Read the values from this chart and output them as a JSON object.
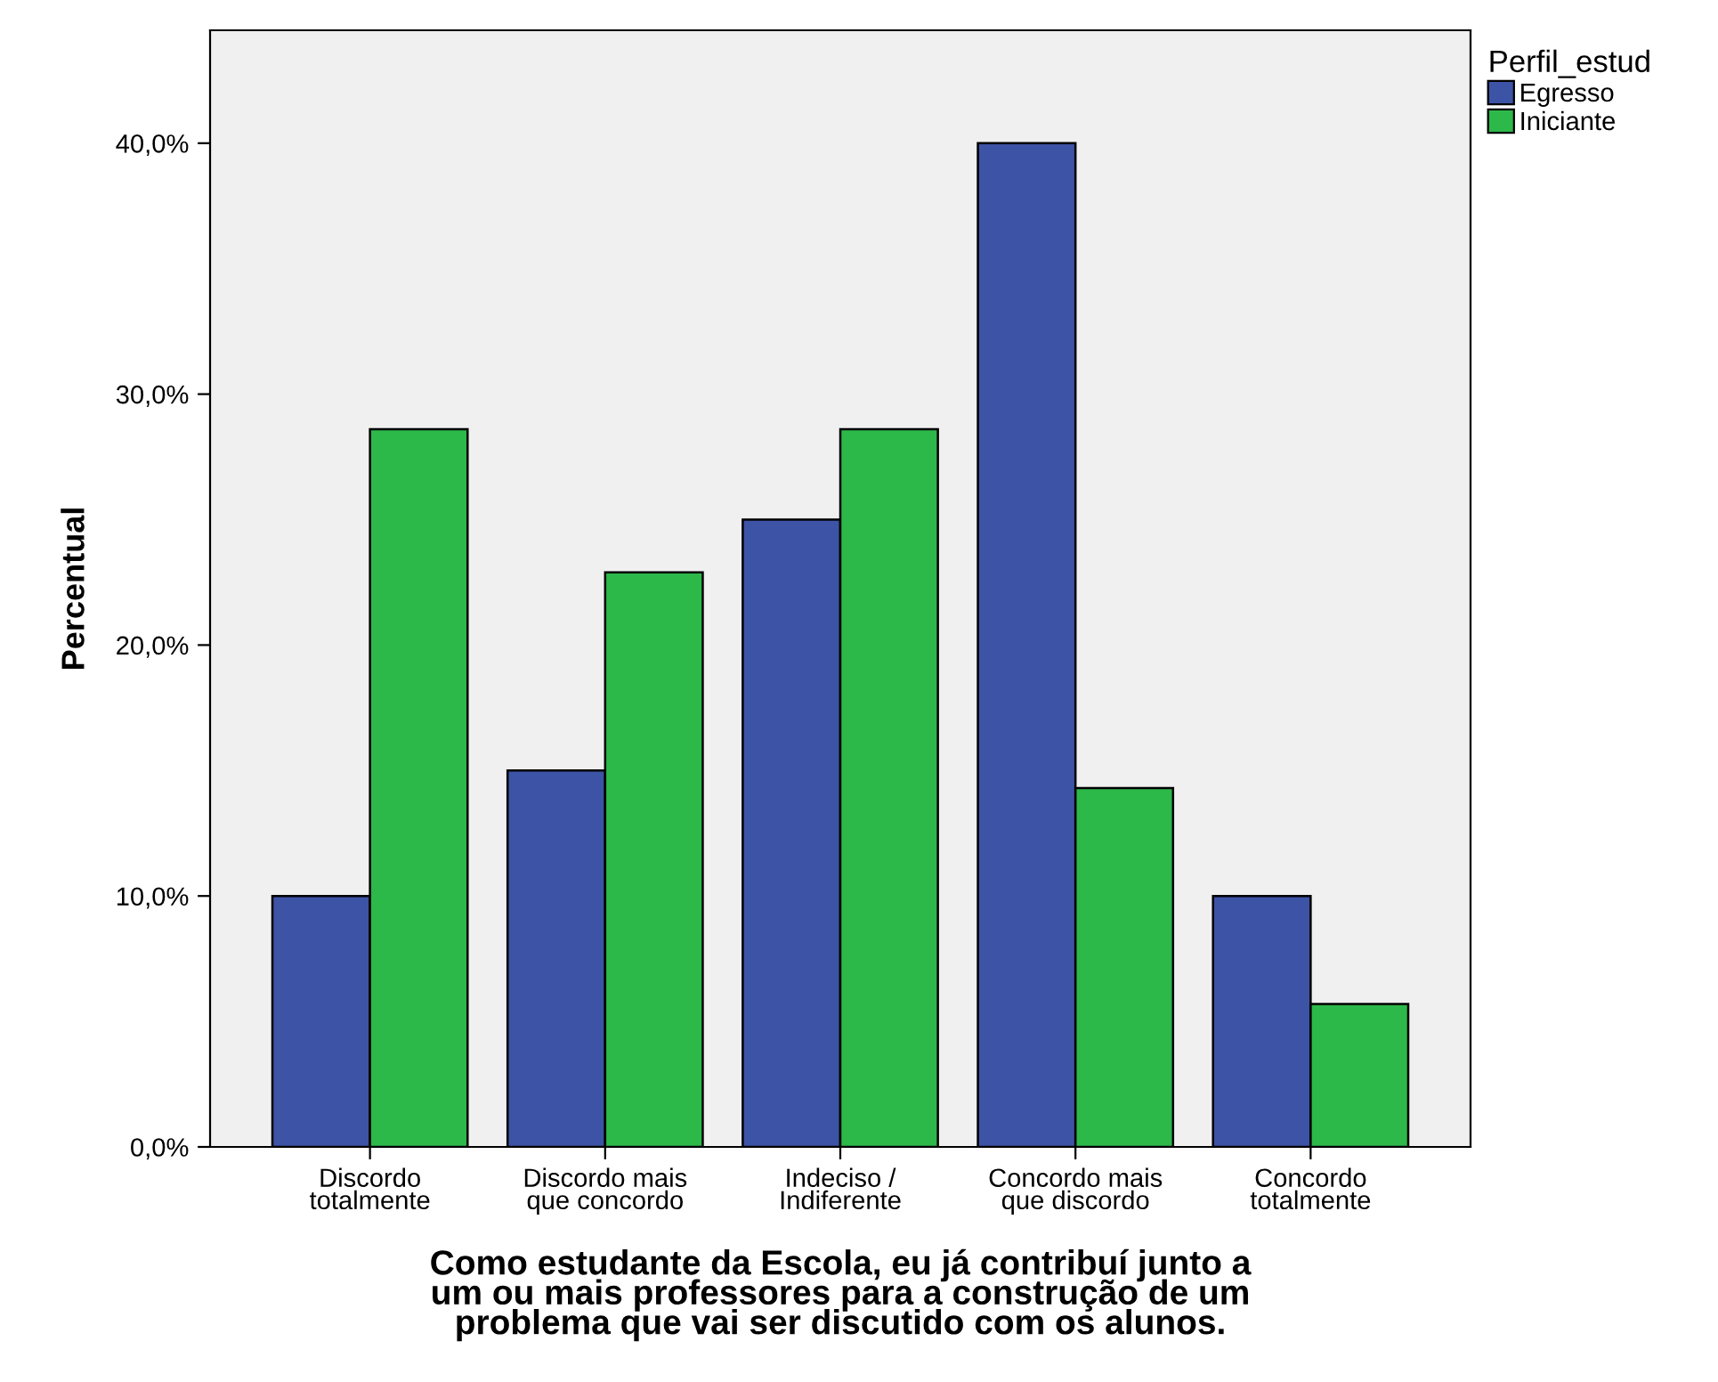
{
  "chart_data": {
    "type": "bar",
    "categories": [
      "Discordo\ntotalmente",
      "Discordo mais\nque concordo",
      "Indeciso /\nIndiferente",
      "Concordo mais\nque discordo",
      "Concordo\ntotalmente"
    ],
    "series": [
      {
        "name": "Egresso",
        "color": "#3d53a5",
        "values": [
          10,
          15,
          25,
          40,
          10
        ]
      },
      {
        "name": "Iniciante",
        "color": "#2db84a",
        "values": [
          28.6,
          22.9,
          28.6,
          14.3,
          5.7
        ]
      }
    ],
    "xlabel": "Como estudante da Escola, eu já contribuí junto a\num ou mais professores para a construção de um\nproblema que vai ser discutido com os alunos.",
    "ylabel": "Percentual",
    "legend_title": "Perfil_estud",
    "legend": "top right",
    "ylim": [
      0,
      44.5
    ],
    "yticks": [
      {
        "value": 0,
        "label": "0,0%"
      },
      {
        "value": 10,
        "label": "10,0%"
      },
      {
        "value": 20,
        "label": "20,0%"
      },
      {
        "value": 30,
        "label": "30,0%"
      },
      {
        "value": 40,
        "label": "40,0%"
      }
    ],
    "grid": false
  }
}
